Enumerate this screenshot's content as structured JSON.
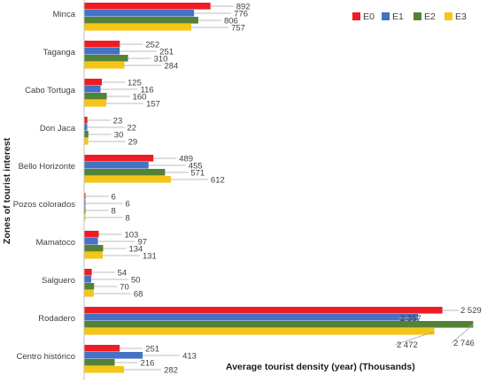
{
  "chart_data": {
    "type": "bar",
    "orientation": "horizontal",
    "xlabel": "Average tourist density (year) (Thousands)",
    "ylabel": "Zones of tourist interest",
    "xlim": [
      0,
      2850
    ],
    "grid": false,
    "legend_position": "top-right",
    "categories": [
      "Minca",
      "Taganga",
      "Cabo Tortuga",
      "Don Jaca",
      "Bello Horizonte",
      "Pozos colorados",
      "Mamatoco",
      "Salguero",
      "Rodadero",
      "Centro histórico"
    ],
    "series": [
      {
        "name": "E0",
        "color": "#ee1c25",
        "values": [
          892,
          252,
          125,
          23,
          489,
          6,
          103,
          54,
          2529,
          251
        ],
        "labels": [
          "892",
          "252",
          "125",
          "23",
          "489",
          "6",
          "103",
          "54",
          "2 529",
          "251"
        ]
      },
      {
        "name": "E1",
        "color": "#4472c4",
        "values": [
          776,
          251,
          116,
          22,
          455,
          6,
          97,
          50,
          2357,
          413
        ],
        "labels": [
          "776",
          "251",
          "116",
          "22",
          "455",
          "6",
          "97",
          "50",
          "2 357",
          "413"
        ]
      },
      {
        "name": "E2",
        "color": "#548235",
        "values": [
          806,
          310,
          160,
          30,
          571,
          8,
          134,
          70,
          2746,
          216
        ],
        "labels": [
          "806",
          "310",
          "160",
          "30",
          "571",
          "8",
          "134",
          "70",
          "2 746",
          "216"
        ]
      },
      {
        "name": "E3",
        "color": "#f5c518",
        "values": [
          757,
          284,
          157,
          29,
          612,
          8,
          131,
          68,
          2472,
          282
        ],
        "labels": [
          "757",
          "284",
          "157",
          "29",
          "612",
          "8",
          "131",
          "68",
          "2 472",
          "282"
        ]
      }
    ]
  }
}
